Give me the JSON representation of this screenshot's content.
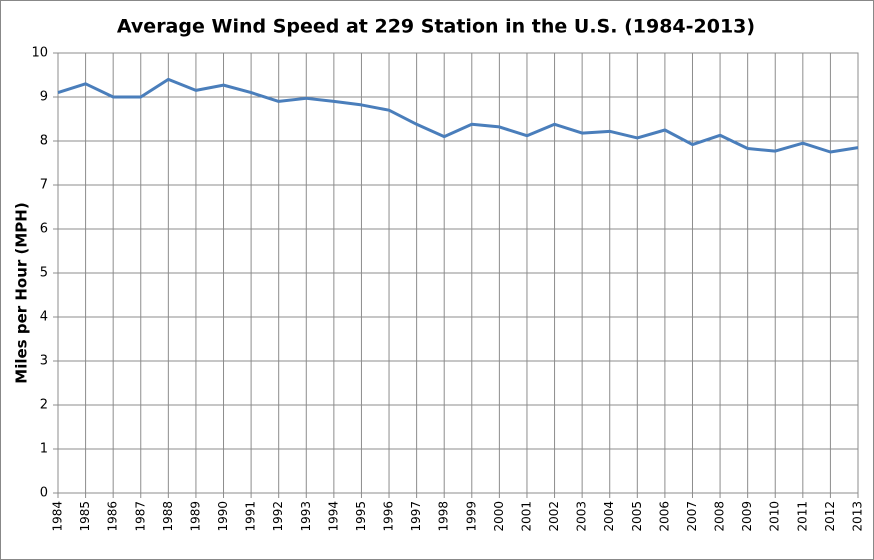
{
  "chart_data": {
    "type": "line",
    "title": "Average Wind Speed at 229 Station in the U.S. (1984-2013)",
    "y_label": "Miles per Hour (MPH)",
    "x": [
      1984,
      1985,
      1986,
      1987,
      1988,
      1989,
      1990,
      1991,
      1992,
      1993,
      1994,
      1995,
      1996,
      1997,
      1998,
      1999,
      2000,
      2001,
      2002,
      2003,
      2004,
      2005,
      2006,
      2007,
      2008,
      2009,
      2010,
      2011,
      2012,
      2013
    ],
    "values": [
      9.1,
      9.3,
      9.0,
      9.0,
      9.4,
      9.15,
      9.27,
      9.1,
      8.9,
      8.97,
      8.9,
      8.82,
      8.7,
      8.38,
      8.1,
      8.38,
      8.32,
      8.12,
      8.38,
      8.18,
      8.22,
      8.07,
      8.25,
      7.92,
      8.13,
      7.83,
      7.77,
      7.95,
      7.75,
      7.85
    ],
    "color": "#4a7ebb",
    "xlim": [
      1984,
      2013
    ],
    "xticks": [
      1984,
      1985,
      1986,
      1987,
      1988,
      1989,
      1990,
      1991,
      1992,
      1993,
      1994,
      1995,
      1996,
      1997,
      1998,
      1999,
      2000,
      2001,
      2002,
      2003,
      2004,
      2005,
      2006,
      2007,
      2008,
      2009,
      2010,
      2011,
      2012,
      2013
    ],
    "ylim": [
      0,
      10
    ],
    "yticks": [
      0,
      1,
      2,
      3,
      4,
      5,
      6,
      7,
      8,
      9,
      10
    ],
    "grid": true
  }
}
